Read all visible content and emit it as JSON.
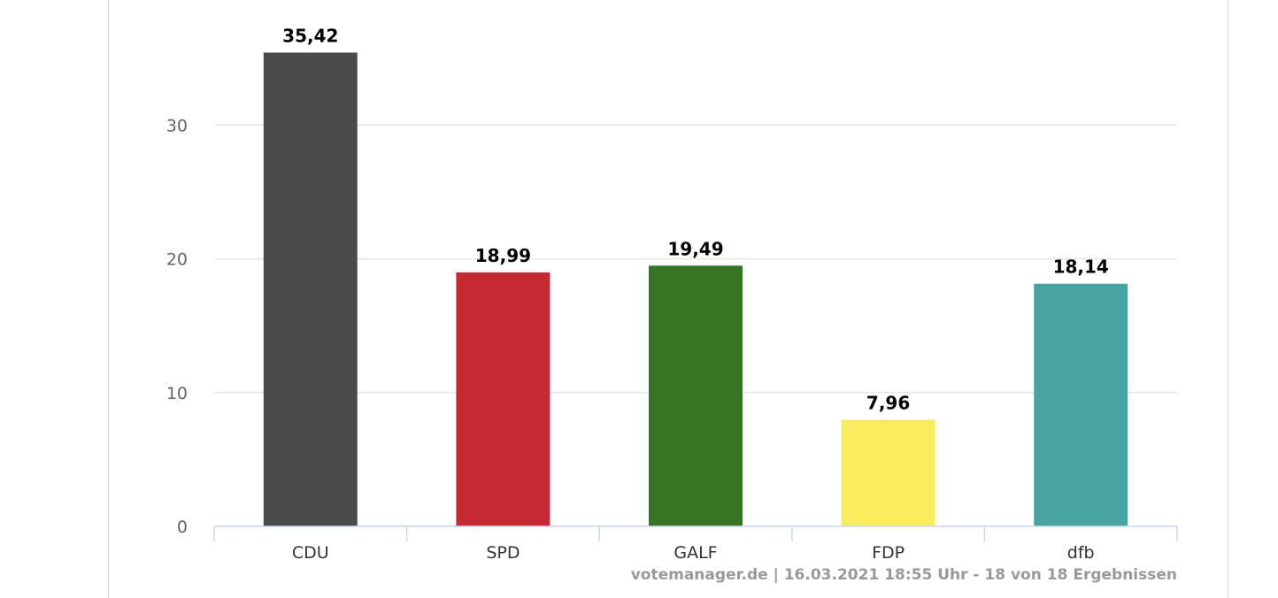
{
  "chart_data": {
    "type": "bar",
    "categories": [
      "CDU",
      "SPD",
      "GALF",
      "FDP",
      "dfb"
    ],
    "values": [
      35.42,
      18.99,
      19.49,
      7.96,
      18.14
    ],
    "data_labels": [
      "35,42",
      "18,99",
      "19,49",
      "7,96",
      "18,14"
    ],
    "colors": [
      "#4a4a4a",
      "#c42934",
      "#367423",
      "#f6ec5e",
      "#49a4a1"
    ],
    "yticks": [
      0,
      10,
      20,
      30
    ],
    "ylim": [
      0,
      37
    ],
    "grid": true,
    "legend": "none"
  },
  "credits": "votemanager.de | 16.03.2021 18:55 Uhr - 18 von 18 Ergebnissen"
}
